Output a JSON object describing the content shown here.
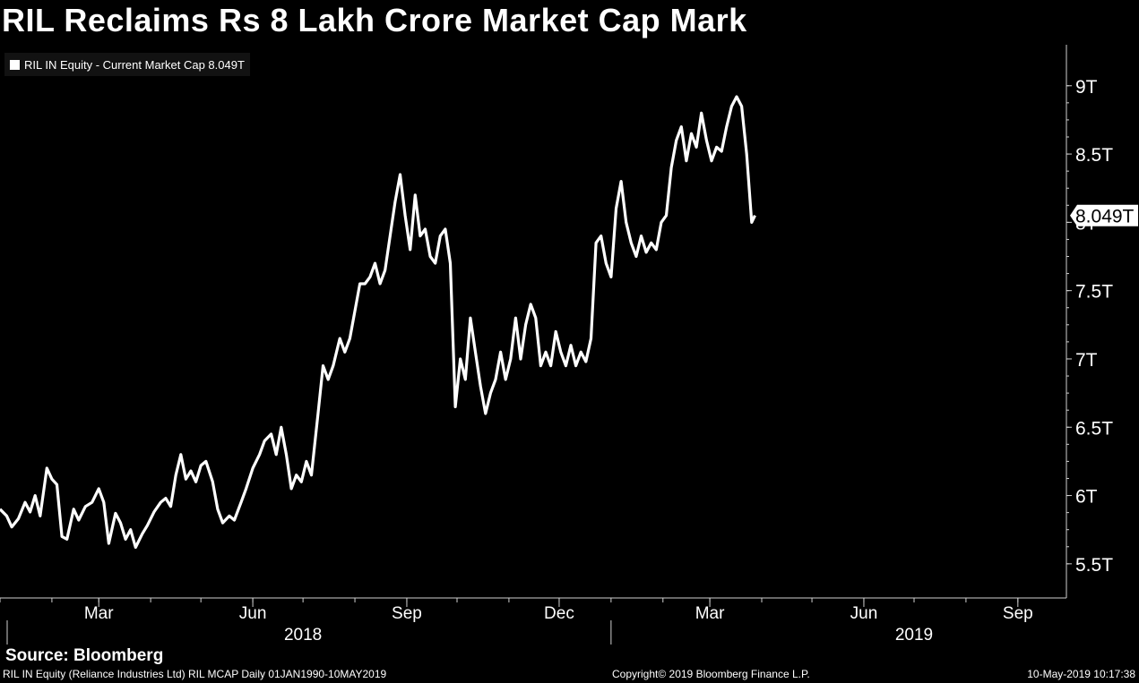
{
  "title": "RIL Reclaims Rs 8 Lakh Crore Market Cap Mark",
  "legend": {
    "label": "RIL IN Equity - Current Market Cap 8.049T",
    "color": "#ffffff"
  },
  "source": "Source: Bloomberg",
  "footer": {
    "left": "RIL IN Equity (Reliance Industries Ltd) RIL MCAP  Daily 01JAN1990-10MAY2019",
    "center": "Copyright© 2019 Bloomberg Finance L.P.",
    "right": "10-May-2019 10:17:38"
  },
  "chart_data": {
    "type": "line",
    "title": "RIL Reclaims Rs 8 Lakh Crore Market Cap Mark",
    "series": [
      {
        "name": "RIL IN Equity - Current Market Cap",
        "color": "#ffffff",
        "last_value_label": "8.049T",
        "points": [
          [
            "2018-01-01",
            5.9
          ],
          [
            "2018-01-05",
            5.85
          ],
          [
            "2018-01-08",
            5.77
          ],
          [
            "2018-01-12",
            5.83
          ],
          [
            "2018-01-16",
            5.95
          ],
          [
            "2018-01-19",
            5.88
          ],
          [
            "2018-01-22",
            6.0
          ],
          [
            "2018-01-25",
            5.85
          ],
          [
            "2018-01-29",
            6.2
          ],
          [
            "2018-02-01",
            6.12
          ],
          [
            "2018-02-04",
            6.08
          ],
          [
            "2018-02-07",
            5.7
          ],
          [
            "2018-02-10",
            5.68
          ],
          [
            "2018-02-14",
            5.9
          ],
          [
            "2018-02-17",
            5.82
          ],
          [
            "2018-02-21",
            5.92
          ],
          [
            "2018-02-25",
            5.95
          ],
          [
            "2018-03-01",
            6.05
          ],
          [
            "2018-03-04",
            5.95
          ],
          [
            "2018-03-07",
            5.65
          ],
          [
            "2018-03-11",
            5.87
          ],
          [
            "2018-03-14",
            5.8
          ],
          [
            "2018-03-17",
            5.68
          ],
          [
            "2018-03-20",
            5.75
          ],
          [
            "2018-03-23",
            5.62
          ],
          [
            "2018-03-27",
            5.72
          ],
          [
            "2018-03-30",
            5.78
          ],
          [
            "2018-04-03",
            5.88
          ],
          [
            "2018-04-07",
            5.95
          ],
          [
            "2018-04-10",
            5.98
          ],
          [
            "2018-04-13",
            5.92
          ],
          [
            "2018-04-16",
            6.15
          ],
          [
            "2018-04-19",
            6.3
          ],
          [
            "2018-04-22",
            6.12
          ],
          [
            "2018-04-25",
            6.18
          ],
          [
            "2018-04-28",
            6.1
          ],
          [
            "2018-05-01",
            6.22
          ],
          [
            "2018-05-04",
            6.25
          ],
          [
            "2018-05-08",
            6.1
          ],
          [
            "2018-05-11",
            5.9
          ],
          [
            "2018-05-14",
            5.8
          ],
          [
            "2018-05-18",
            5.85
          ],
          [
            "2018-05-21",
            5.82
          ],
          [
            "2018-05-25",
            5.95
          ],
          [
            "2018-05-28",
            6.05
          ],
          [
            "2018-06-01",
            6.2
          ],
          [
            "2018-06-05",
            6.3
          ],
          [
            "2018-06-08",
            6.4
          ],
          [
            "2018-06-12",
            6.45
          ],
          [
            "2018-06-15",
            6.3
          ],
          [
            "2018-06-18",
            6.5
          ],
          [
            "2018-06-21",
            6.3
          ],
          [
            "2018-06-24",
            6.05
          ],
          [
            "2018-06-27",
            6.15
          ],
          [
            "2018-06-30",
            6.1
          ],
          [
            "2018-07-03",
            6.25
          ],
          [
            "2018-07-06",
            6.15
          ],
          [
            "2018-07-10",
            6.6
          ],
          [
            "2018-07-13",
            6.95
          ],
          [
            "2018-07-16",
            6.85
          ],
          [
            "2018-07-19",
            6.95
          ],
          [
            "2018-07-23",
            7.15
          ],
          [
            "2018-07-26",
            7.05
          ],
          [
            "2018-07-29",
            7.15
          ],
          [
            "2018-08-01",
            7.35
          ],
          [
            "2018-08-04",
            7.55
          ],
          [
            "2018-08-07",
            7.55
          ],
          [
            "2018-08-10",
            7.6
          ],
          [
            "2018-08-13",
            7.7
          ],
          [
            "2018-08-16",
            7.55
          ],
          [
            "2018-08-19",
            7.65
          ],
          [
            "2018-08-22",
            7.9
          ],
          [
            "2018-08-25",
            8.15
          ],
          [
            "2018-08-28",
            8.35
          ],
          [
            "2018-08-31",
            8.05
          ],
          [
            "2018-09-03",
            7.8
          ],
          [
            "2018-09-06",
            8.2
          ],
          [
            "2018-09-09",
            7.9
          ],
          [
            "2018-09-12",
            7.95
          ],
          [
            "2018-09-15",
            7.75
          ],
          [
            "2018-09-18",
            7.7
          ],
          [
            "2018-09-21",
            7.9
          ],
          [
            "2018-09-24",
            7.95
          ],
          [
            "2018-09-27",
            7.7
          ],
          [
            "2018-09-30",
            6.65
          ],
          [
            "2018-10-03",
            7.0
          ],
          [
            "2018-10-06",
            6.85
          ],
          [
            "2018-10-09",
            7.3
          ],
          [
            "2018-10-12",
            7.05
          ],
          [
            "2018-10-15",
            6.8
          ],
          [
            "2018-10-18",
            6.6
          ],
          [
            "2018-10-21",
            6.75
          ],
          [
            "2018-10-24",
            6.85
          ],
          [
            "2018-10-27",
            7.05
          ],
          [
            "2018-10-30",
            6.85
          ],
          [
            "2018-11-02",
            7.0
          ],
          [
            "2018-11-05",
            7.3
          ],
          [
            "2018-11-08",
            7.0
          ],
          [
            "2018-11-11",
            7.25
          ],
          [
            "2018-11-14",
            7.4
          ],
          [
            "2018-11-17",
            7.3
          ],
          [
            "2018-11-20",
            6.95
          ],
          [
            "2018-11-23",
            7.05
          ],
          [
            "2018-11-26",
            6.95
          ],
          [
            "2018-11-29",
            7.2
          ],
          [
            "2018-12-02",
            7.05
          ],
          [
            "2018-12-05",
            6.95
          ],
          [
            "2018-12-08",
            7.1
          ],
          [
            "2018-12-11",
            6.95
          ],
          [
            "2018-12-14",
            7.05
          ],
          [
            "2018-12-17",
            6.98
          ],
          [
            "2018-12-20",
            7.15
          ],
          [
            "2018-12-23",
            7.85
          ],
          [
            "2018-12-26",
            7.9
          ],
          [
            "2018-12-29",
            7.7
          ],
          [
            "2019-01-01",
            7.6
          ],
          [
            "2019-01-04",
            8.1
          ],
          [
            "2019-01-07",
            8.3
          ],
          [
            "2019-01-10",
            8.0
          ],
          [
            "2019-01-13",
            7.85
          ],
          [
            "2019-01-16",
            7.75
          ],
          [
            "2019-01-19",
            7.9
          ],
          [
            "2019-01-22",
            7.78
          ],
          [
            "2019-01-25",
            7.85
          ],
          [
            "2019-01-28",
            7.8
          ],
          [
            "2019-01-31",
            8.0
          ],
          [
            "2019-02-03",
            8.05
          ],
          [
            "2019-02-06",
            8.4
          ],
          [
            "2019-02-09",
            8.6
          ],
          [
            "2019-02-12",
            8.7
          ],
          [
            "2019-02-15",
            8.45
          ],
          [
            "2019-02-18",
            8.65
          ],
          [
            "2019-02-21",
            8.55
          ],
          [
            "2019-02-24",
            8.8
          ],
          [
            "2019-02-27",
            8.6
          ],
          [
            "2019-03-02",
            8.45
          ],
          [
            "2019-03-05",
            8.55
          ],
          [
            "2019-03-08",
            8.52
          ],
          [
            "2019-03-11",
            8.7
          ],
          [
            "2019-03-14",
            8.85
          ],
          [
            "2019-03-17",
            8.92
          ],
          [
            "2019-03-20",
            8.85
          ],
          [
            "2019-03-23",
            8.5
          ],
          [
            "2019-03-26",
            8.0
          ],
          [
            "2019-03-28",
            8.05
          ]
        ]
      }
    ],
    "y_axis": {
      "position": "right",
      "ticks": [
        5.5,
        6,
        6.5,
        7,
        7.5,
        8,
        8.5,
        9
      ],
      "tick_labels": [
        "5.5T",
        "6T",
        "6.5T",
        "7T",
        "7.5T",
        "8T",
        "8.5T",
        "9T"
      ],
      "ylim": [
        5.25,
        9.3
      ]
    },
    "x_axis": {
      "range": [
        "2018-01-01",
        "2019-09-30"
      ],
      "month_ticks": [
        "Mar",
        "Jun",
        "Sep",
        "Dec",
        "Mar",
        "Jun",
        "Sep"
      ],
      "month_tick_dates": [
        "2018-03-01",
        "2018-06-01",
        "2018-09-01",
        "2018-12-01",
        "2019-03-01",
        "2019-06-01",
        "2019-09-01"
      ],
      "year_labels": [
        "2018",
        "2019"
      ],
      "year_label_dates": [
        "2018-07-01",
        "2019-07-01"
      ]
    },
    "grid": false,
    "legend_position": "top-left",
    "background": "#000000"
  }
}
